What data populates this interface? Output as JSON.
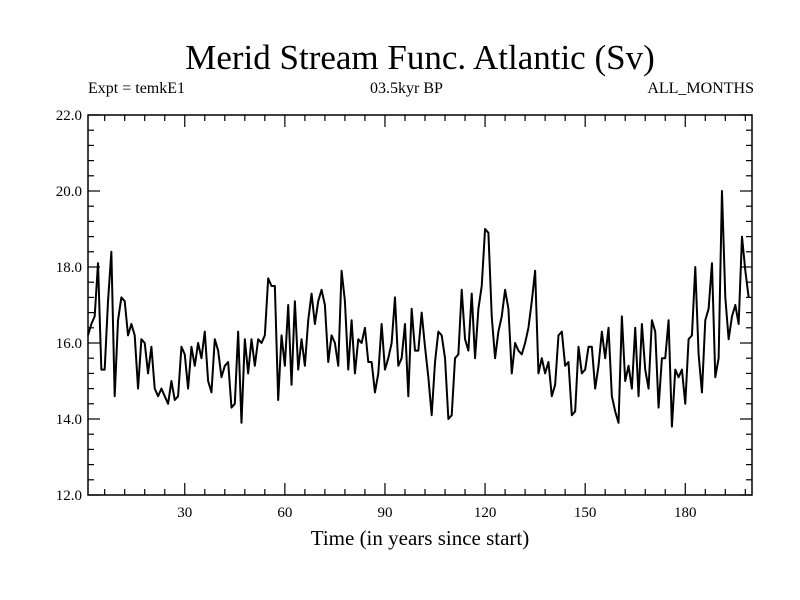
{
  "chart_data": {
    "type": "line",
    "title": "Merid Stream Func. Atlantic (Sv)",
    "subtitle_left": "Expt = temkE1",
    "subtitle_center": "03.5kyr BP",
    "subtitle_right": "ALL_MONTHS",
    "xlabel": "Time (in years since start)",
    "ylabel": "",
    "xlim": [
      1,
      200
    ],
    "ylim": [
      12.0,
      22.0
    ],
    "xticks": [
      30,
      60,
      90,
      120,
      150,
      180
    ],
    "yticks": [
      12.0,
      14.0,
      16.0,
      18.0,
      20.0,
      22.0
    ],
    "ytick_labels": [
      "12.0",
      "14.0",
      "16.0",
      "18.0",
      "20.0",
      "22.0"
    ],
    "series": [
      {
        "name": "Merid Stream Func. Atlantic",
        "x_start": 1,
        "x_step": 1,
        "values": [
          16.2,
          16.5,
          16.7,
          18.1,
          15.3,
          15.3,
          17.1,
          18.4,
          14.6,
          16.6,
          17.2,
          17.1,
          16.2,
          16.5,
          16.2,
          14.8,
          16.1,
          16.0,
          15.2,
          15.9,
          14.8,
          14.6,
          14.8,
          14.6,
          14.4,
          15.0,
          14.5,
          14.6,
          15.9,
          15.7,
          14.8,
          15.9,
          15.4,
          16.0,
          15.6,
          16.3,
          15.0,
          14.7,
          16.1,
          15.8,
          15.1,
          15.4,
          15.5,
          14.3,
          14.4,
          16.3,
          13.9,
          16.1,
          15.2,
          16.1,
          15.4,
          16.1,
          16.0,
          16.2,
          17.7,
          17.5,
          17.5,
          14.5,
          16.2,
          15.4,
          17.0,
          14.9,
          17.1,
          15.3,
          16.1,
          15.4,
          16.6,
          17.3,
          16.5,
          17.1,
          17.4,
          17.0,
          15.5,
          16.2,
          16.0,
          15.4,
          17.9,
          17.1,
          15.3,
          16.6,
          15.2,
          16.1,
          16.0,
          16.4,
          15.5,
          15.5,
          14.7,
          15.2,
          16.5,
          15.3,
          15.6,
          16.0,
          17.2,
          15.4,
          15.6,
          16.5,
          14.6,
          16.9,
          15.8,
          15.8,
          16.8,
          15.9,
          15.1,
          14.1,
          15.5,
          16.3,
          16.2,
          15.6,
          14.0,
          14.1,
          15.6,
          15.7,
          17.4,
          16.1,
          15.8,
          17.3,
          15.6,
          16.9,
          17.5,
          19.0,
          18.9,
          16.7,
          15.6,
          16.3,
          16.7,
          17.4,
          16.9,
          15.2,
          16.0,
          15.8,
          15.7,
          16.0,
          16.4,
          17.1,
          17.9,
          15.2,
          15.6,
          15.2,
          15.5,
          14.6,
          14.9,
          16.2,
          16.3,
          15.4,
          15.5,
          14.1,
          14.2,
          15.9,
          15.2,
          15.3,
          15.9,
          15.9,
          14.8,
          15.4,
          16.3,
          15.6,
          16.4,
          14.6,
          14.2,
          13.9,
          16.7,
          15.0,
          15.4,
          14.8,
          16.4,
          14.6,
          16.5,
          15.3,
          14.8,
          16.6,
          16.3,
          14.3,
          15.6,
          15.6,
          16.6,
          13.8,
          15.3,
          15.1,
          15.3,
          14.4,
          16.1,
          16.2,
          18.0,
          15.7,
          14.7,
          16.6,
          16.9,
          18.1,
          15.1,
          15.6,
          20.0,
          17.2,
          16.1,
          16.7,
          17.0,
          16.5,
          18.8,
          17.9,
          17.2
        ]
      }
    ],
    "colors": {
      "line": "#000000",
      "axis": "#000000",
      "background": "#ffffff"
    }
  }
}
